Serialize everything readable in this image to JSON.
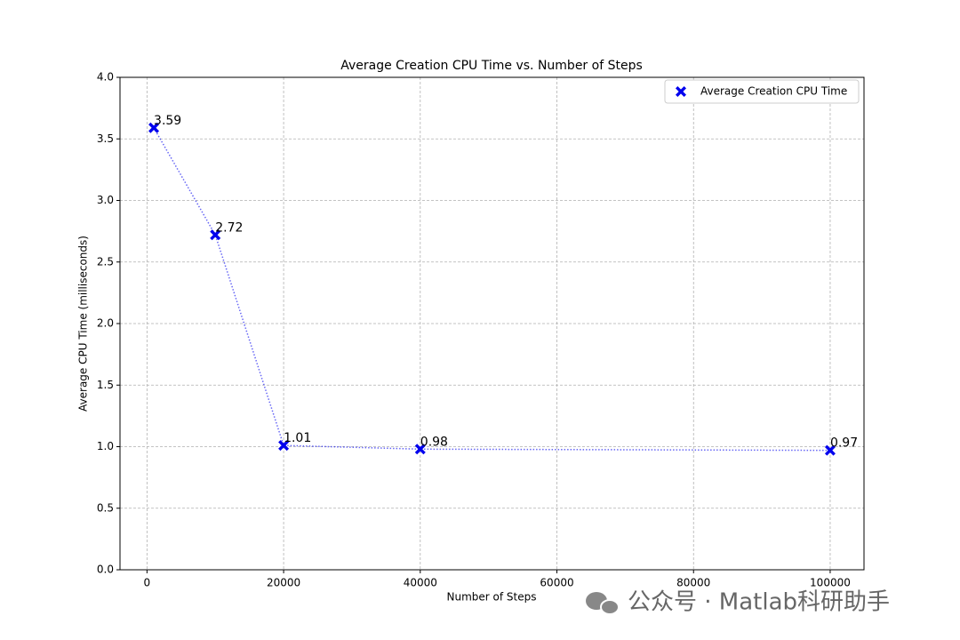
{
  "chart_data": {
    "type": "scatter",
    "title": "Average Creation CPU Time vs. Number of Steps",
    "x_label": "Number of Steps",
    "y_label": "Average CPU Time (milliseconds)",
    "x": [
      1000,
      10000,
      20000,
      40000,
      100000
    ],
    "series": [
      {
        "name": "Average Creation CPU Time",
        "color": "#0000ee",
        "values": [
          3.59,
          2.72,
          1.01,
          0.98,
          0.97
        ]
      }
    ],
    "xlim": [
      -3950,
      104950
    ],
    "xticks": [
      0,
      20000,
      40000,
      60000,
      80000,
      100000
    ],
    "ylim": [
      0,
      4
    ],
    "yticks": [
      {
        "value": 0,
        "label": "0.0"
      },
      0.5,
      {
        "value": 1,
        "label": "1.0"
      },
      1.5,
      {
        "value": 2,
        "label": "2.0"
      },
      2.5,
      {
        "value": 3,
        "label": "3.0"
      },
      3.5,
      {
        "value": 4,
        "label": "4.0"
      }
    ],
    "grid": true,
    "legend": "upper right",
    "watermark": "公众号 · Matlab科研助手"
  }
}
